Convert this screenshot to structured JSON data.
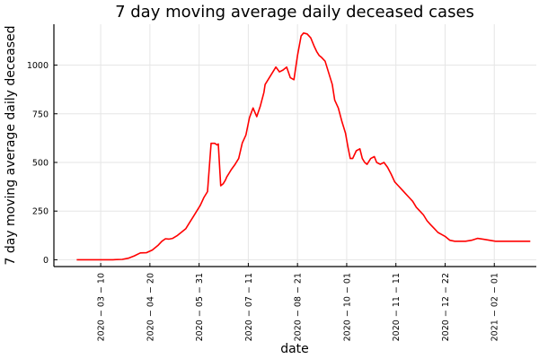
{
  "chart_data": {
    "type": "line",
    "title": "7 day moving average daily deceased cases",
    "xlabel": "date",
    "ylabel": "7 day moving average daily deceased",
    "xlim": [
      "2020-01-31",
      "2021-03-08"
    ],
    "ylim": [
      -35,
      1210
    ],
    "grid": true,
    "legend": "none",
    "xticks": [
      "2020-03-10",
      "2020-04-20",
      "2020-05-31",
      "2020-07-11",
      "2020-08-21",
      "2020-10-01",
      "2020-11-11",
      "2020-12-22",
      "2021-02-01"
    ],
    "xtick_labels": [
      "2020 − 03 − 10",
      "2020 − 04 − 20",
      "2020 − 05 − 31",
      "2020 − 07 − 11",
      "2020 − 08 − 21",
      "2020 − 10 − 01",
      "2020 − 11 − 11",
      "2020 − 12 − 22",
      "2021 − 02 − 01"
    ],
    "yticks": [
      0,
      250,
      500,
      750,
      1000
    ],
    "ytick_labels": [
      "0",
      "250",
      "500",
      "750",
      "1000"
    ],
    "series": [
      {
        "color": "#ff0000",
        "x": [
          "2020-02-19",
          "2020-03-05",
          "2020-03-20",
          "2020-03-28",
          "2020-04-02",
          "2020-04-07",
          "2020-04-12",
          "2020-04-17",
          "2020-04-22",
          "2020-04-27",
          "2020-04-30",
          "2020-05-03",
          "2020-05-06",
          "2020-05-09",
          "2020-05-13",
          "2020-05-17",
          "2020-05-20",
          "2020-05-23",
          "2020-05-26",
          "2020-05-29",
          "2020-06-01",
          "2020-06-04",
          "2020-06-07",
          "2020-06-10",
          "2020-06-13",
          "2020-06-15",
          "2020-06-16",
          "2020-06-18",
          "2020-06-20",
          "2020-06-21",
          "2020-06-22",
          "2020-06-23",
          "2020-06-27",
          "2020-06-30",
          "2020-07-03",
          "2020-07-06",
          "2020-07-09",
          "2020-07-12",
          "2020-07-15",
          "2020-07-18",
          "2020-07-21",
          "2020-07-24",
          "2020-07-25",
          "2020-07-28",
          "2020-07-31",
          "2020-08-03",
          "2020-08-06",
          "2020-08-09",
          "2020-08-12",
          "2020-08-15",
          "2020-08-18",
          "2020-08-21",
          "2020-08-24",
          "2020-08-26",
          "2020-08-29",
          "2020-09-01",
          "2020-09-04",
          "2020-09-06",
          "2020-09-08",
          "2020-09-10",
          "2020-09-13",
          "2020-09-16",
          "2020-09-19",
          "2020-09-21",
          "2020-09-24",
          "2020-09-27",
          "2020-09-30",
          "2020-10-02",
          "2020-10-04",
          "2020-10-06",
          "2020-10-09",
          "2020-10-12",
          "2020-10-14",
          "2020-10-16",
          "2020-10-18",
          "2020-10-21",
          "2020-10-24",
          "2020-10-26",
          "2020-10-29",
          "2020-11-01",
          "2020-11-04",
          "2020-11-07",
          "2020-11-10",
          "2020-11-13",
          "2020-11-16",
          "2020-11-19",
          "2020-11-22",
          "2020-11-25",
          "2020-11-28",
          "2020-12-01",
          "2020-12-04",
          "2020-12-07",
          "2020-12-10",
          "2020-12-13",
          "2020-12-16",
          "2020-12-19",
          "2020-12-22",
          "2020-12-26",
          "2020-12-30",
          "2021-01-03",
          "2021-01-08",
          "2021-01-13",
          "2021-01-18",
          "2021-01-23",
          "2021-01-28",
          "2021-02-02",
          "2021-02-06",
          "2021-02-09",
          "2021-02-12",
          "2021-02-16",
          "2021-02-20",
          "2021-02-23",
          "2021-02-26",
          "2021-03-01",
          "2021-03-03"
        ],
        "y": [
          0,
          0,
          0,
          2,
          8,
          20,
          35,
          36,
          50,
          75,
          95,
          108,
          106,
          110,
          125,
          145,
          160,
          190,
          220,
          250,
          280,
          320,
          350,
          598,
          598,
          590,
          595,
          380,
          390,
          400,
          410,
          425,
          465,
          490,
          520,
          600,
          640,
          730,
          780,
          735,
          790,
          860,
          900,
          930,
          960,
          990,
          965,
          975,
          990,
          935,
          925,
          1050,
          1150,
          1165,
          1160,
          1140,
          1095,
          1070,
          1050,
          1040,
          1020,
          960,
          900,
          820,
          780,
          710,
          650,
          580,
          520,
          520,
          560,
          570,
          520,
          500,
          490,
          520,
          530,
          500,
          490,
          500,
          475,
          440,
          400,
          380,
          360,
          340,
          320,
          300,
          270,
          250,
          230,
          200,
          180,
          160,
          140,
          130,
          120,
          100,
          95,
          95,
          95,
          100,
          110,
          105,
          100,
          95,
          95,
          95,
          95,
          95,
          95,
          95,
          95,
          95,
          95
        ]
      }
    ]
  }
}
